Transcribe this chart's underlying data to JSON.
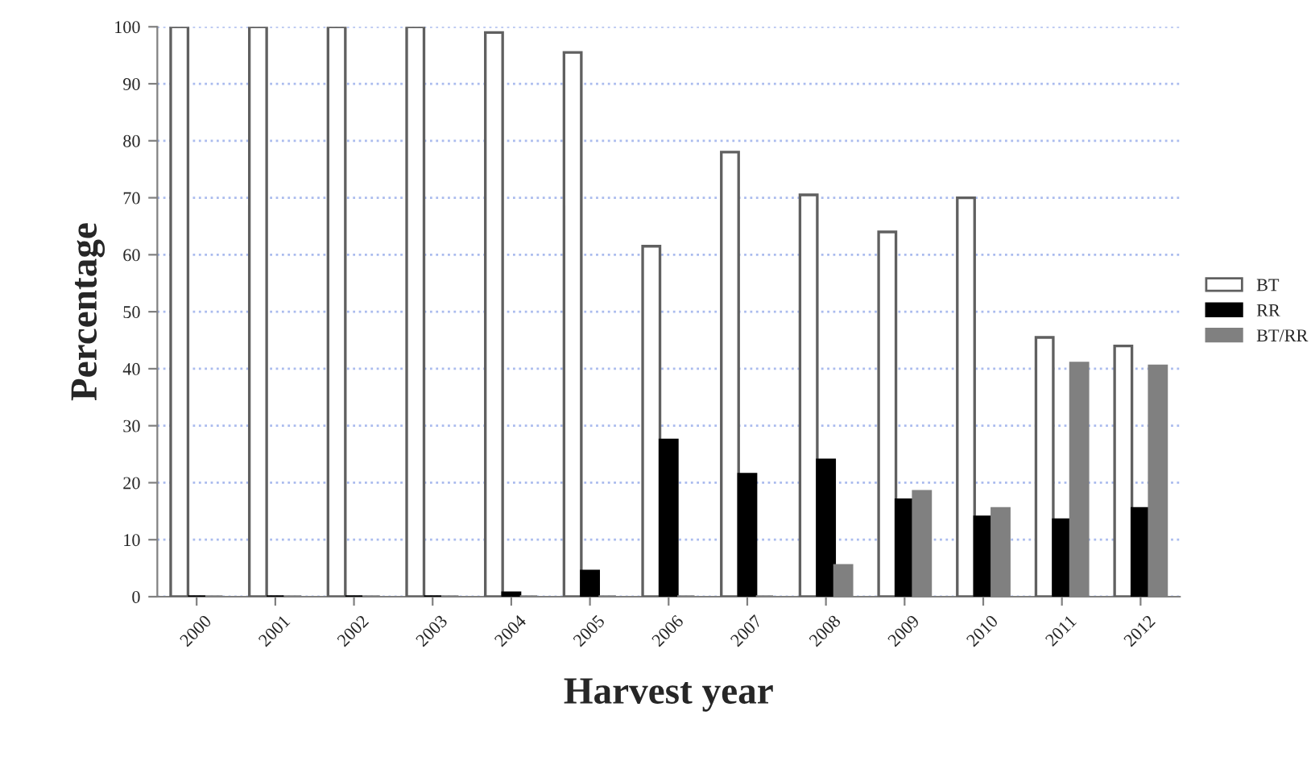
{
  "chart_data": {
    "type": "bar",
    "xlabel": "Harvest year",
    "ylabel": "Percentage",
    "categories": [
      "2000",
      "2001",
      "2002",
      "2003",
      "2004",
      "2005",
      "2006",
      "2007",
      "2008",
      "2009",
      "2010",
      "2011",
      "2012"
    ],
    "series": [
      {
        "name": "BT",
        "color": "#ffffff",
        "values": [
          100,
          100,
          100,
          100,
          99,
          95.5,
          61.5,
          78,
          70.5,
          64,
          70,
          45.5,
          44
        ]
      },
      {
        "name": "RR",
        "color": "#000000",
        "values": [
          0,
          0,
          0,
          0,
          0.7,
          4.5,
          27.5,
          21.5,
          24,
          17,
          14,
          13.5,
          15.5
        ]
      },
      {
        "name": "BT/RR",
        "color": "#808080",
        "values": [
          0,
          0,
          0,
          0,
          0,
          0,
          0,
          0,
          5.5,
          18.5,
          15.5,
          41,
          40.5
        ]
      }
    ],
    "ylim": [
      0,
      100
    ],
    "yticks": [
      0,
      10,
      20,
      30,
      40,
      50,
      60,
      70,
      80,
      90,
      100
    ],
    "grid": "y",
    "legend": "right"
  }
}
